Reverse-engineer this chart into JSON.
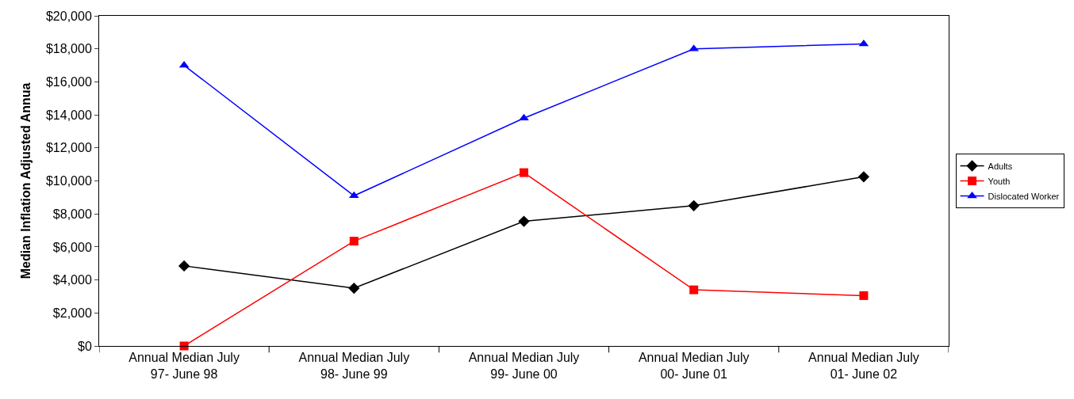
{
  "chart_data": {
    "type": "line",
    "ylabel": "Median Inflation Adjusted Annua",
    "categories": [
      "Annual Median July 97- June 98",
      "Annual Median July 98- June 99",
      "Annual Median July 99- June 00",
      "Annual Median July 00- June 01",
      "Annual Median July 01- June 02"
    ],
    "series": [
      {
        "name": "Adults",
        "color": "#000000",
        "marker": "diamond",
        "values": [
          4850,
          3500,
          7550,
          8500,
          10250
        ]
      },
      {
        "name": "Youth",
        "color": "#ff0000",
        "marker": "square",
        "values": [
          0,
          6350,
          10500,
          3400,
          3050
        ]
      },
      {
        "name": "Dislocated Worker",
        "color": "#0000ff",
        "marker": "triangle",
        "values": [
          17000,
          9100,
          13800,
          18000,
          18300
        ]
      }
    ],
    "ylim": [
      0,
      20000
    ],
    "yticks": [
      {
        "value": 0,
        "label": "$0"
      },
      {
        "value": 2000,
        "label": "$2,000"
      },
      {
        "value": 4000,
        "label": "$4,000"
      },
      {
        "value": 6000,
        "label": "$6,000"
      },
      {
        "value": 8000,
        "label": "$8,000"
      },
      {
        "value": 10000,
        "label": "$10,000"
      },
      {
        "value": 12000,
        "label": "$12,000"
      },
      {
        "value": 14000,
        "label": "$14,000"
      },
      {
        "value": 16000,
        "label": "$16,000"
      },
      {
        "value": 18000,
        "label": "$18,000"
      },
      {
        "value": 20000,
        "label": "$20,000"
      }
    ],
    "legend": "right",
    "line_style": "solid"
  }
}
